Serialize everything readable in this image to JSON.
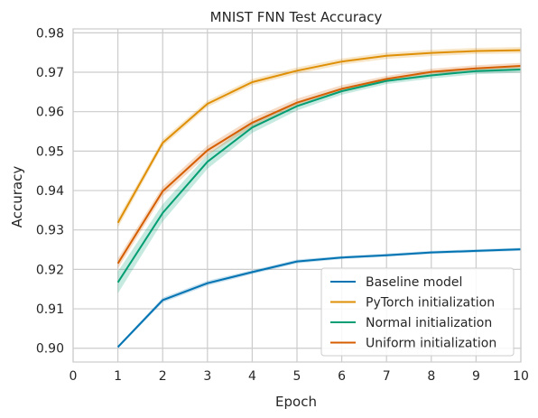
{
  "chart_data": {
    "type": "line",
    "title": "MNIST FNN Test Accuracy",
    "xlabel": "Epoch",
    "ylabel": "Accuracy",
    "xlim": [
      0,
      10
    ],
    "ylim": [
      0.8965,
      0.981
    ],
    "xticks": [
      "0",
      "1",
      "2",
      "3",
      "4",
      "5",
      "6",
      "7",
      "8",
      "9",
      "10"
    ],
    "yticks": [
      "0.90",
      "0.91",
      "0.92",
      "0.93",
      "0.94",
      "0.95",
      "0.96",
      "0.97",
      "0.98"
    ],
    "grid": true,
    "legend_position": "lower-right",
    "x": [
      1,
      2,
      3,
      4,
      5,
      6,
      7,
      8,
      9,
      10
    ],
    "series": [
      {
        "name": "Baseline model",
        "color": "#0173b2",
        "values": [
          0.9003,
          0.9122,
          0.9165,
          0.9193,
          0.922,
          0.923,
          0.9236,
          0.9243,
          0.9247,
          0.9251
        ],
        "band": [
          0.0004,
          0.0006,
          0.0006,
          0.0005,
          0.0005,
          0.0004,
          0.0004,
          0.0004,
          0.0004,
          0.0004
        ]
      },
      {
        "name": "PyTorch initialization",
        "color": "#de8f05",
        "values": [
          0.9318,
          0.9521,
          0.962,
          0.9675,
          0.9704,
          0.9727,
          0.9742,
          0.9749,
          0.9754,
          0.9756
        ],
        "band": [
          0.0012,
          0.0009,
          0.0008,
          0.0008,
          0.0008,
          0.0008,
          0.0008,
          0.0008,
          0.0008,
          0.0008
        ]
      },
      {
        "name": "Normal initialization",
        "color": "#029e73",
        "values": [
          0.9167,
          0.9343,
          0.9473,
          0.956,
          0.9614,
          0.9652,
          0.9678,
          0.9692,
          0.9703,
          0.9707
        ],
        "band": [
          0.0028,
          0.0022,
          0.0018,
          0.0014,
          0.0011,
          0.0009,
          0.0008,
          0.0008,
          0.0008,
          0.0008
        ]
      },
      {
        "name": "Uniform initialization",
        "color": "#d55e00",
        "values": [
          0.9215,
          0.9398,
          0.9502,
          0.9572,
          0.9623,
          0.9658,
          0.9683,
          0.9701,
          0.971,
          0.9716
        ],
        "band": [
          0.0013,
          0.0012,
          0.0012,
          0.0011,
          0.001,
          0.0009,
          0.0008,
          0.0008,
          0.0008,
          0.0008
        ]
      }
    ]
  }
}
